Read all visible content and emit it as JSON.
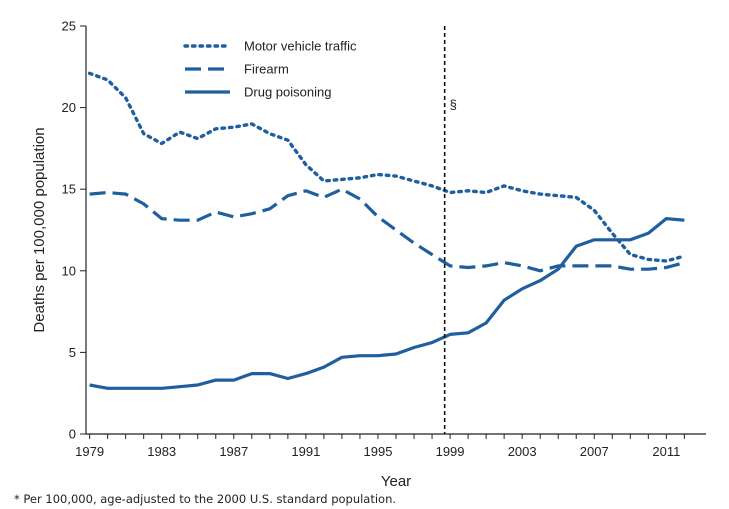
{
  "chart_data": {
    "type": "line",
    "title": "",
    "xlabel": "Year",
    "ylabel": "Deaths per 100,000 population",
    "ylim": [
      0,
      25
    ],
    "yticks": [
      "0",
      "5",
      "10",
      "15",
      "20",
      "25"
    ],
    "xticks": [
      "1979",
      "1983",
      "1987",
      "1991",
      "1995",
      "1999",
      "2003",
      "2007",
      "2011"
    ],
    "xlim": [
      1978.8,
      2013.2
    ],
    "marker_line": {
      "x": 1998.7,
      "label": "§"
    },
    "footnote": "* Per 100,000, age-adjusted to the 2000 U.S. standard population.",
    "legend_position": "top-left",
    "series": [
      {
        "name": "Motor vehicle traffic",
        "style": "dotted",
        "color": "#1f5f9e",
        "x": [
          1979,
          1980,
          1981,
          1982,
          1983,
          1984,
          1985,
          1986,
          1987,
          1988,
          1989,
          1990,
          1991,
          1992,
          1993,
          1994,
          1995,
          1996,
          1997,
          1998,
          1999,
          2000,
          2001,
          2002,
          2003,
          2004,
          2005,
          2006,
          2007,
          2008,
          2009,
          2010,
          2011,
          2012
        ],
        "values": [
          22.1,
          21.7,
          20.6,
          18.4,
          17.8,
          18.5,
          18.1,
          18.7,
          18.8,
          19.0,
          18.4,
          18.0,
          16.5,
          15.5,
          15.6,
          15.7,
          15.9,
          15.8,
          15.5,
          15.2,
          14.8,
          14.9,
          14.8,
          15.2,
          14.9,
          14.7,
          14.6,
          14.5,
          13.7,
          12.3,
          11.0,
          10.7,
          10.6,
          10.9
        ]
      },
      {
        "name": "Firearm",
        "style": "dashed",
        "color": "#1f5f9e",
        "x": [
          1979,
          1980,
          1981,
          1982,
          1983,
          1984,
          1985,
          1986,
          1987,
          1988,
          1989,
          1990,
          1991,
          1992,
          1993,
          1994,
          1995,
          1996,
          1997,
          1998,
          1999,
          2000,
          2001,
          2002,
          2003,
          2004,
          2005,
          2006,
          2007,
          2008,
          2009,
          2010,
          2011,
          2012
        ],
        "values": [
          14.7,
          14.8,
          14.7,
          14.1,
          13.2,
          13.1,
          13.1,
          13.6,
          13.3,
          13.5,
          13.8,
          14.6,
          14.9,
          14.5,
          15.0,
          14.4,
          13.3,
          12.5,
          11.7,
          11.0,
          10.3,
          10.2,
          10.3,
          10.5,
          10.3,
          10.0,
          10.3,
          10.3,
          10.3,
          10.3,
          10.1,
          10.1,
          10.2,
          10.5
        ]
      },
      {
        "name": "Drug poisoning",
        "style": "solid",
        "color": "#1f5f9e",
        "x": [
          1979,
          1980,
          1981,
          1982,
          1983,
          1984,
          1985,
          1986,
          1987,
          1988,
          1989,
          1990,
          1991,
          1992,
          1993,
          1994,
          1995,
          1996,
          1997,
          1998,
          1999,
          2000,
          2001,
          2002,
          2003,
          2004,
          2005,
          2006,
          2007,
          2008,
          2009,
          2010,
          2011,
          2012
        ],
        "values": [
          3.0,
          2.8,
          2.8,
          2.8,
          2.8,
          2.9,
          3.0,
          3.3,
          3.3,
          3.7,
          3.7,
          3.4,
          3.7,
          4.1,
          4.7,
          4.8,
          4.8,
          4.9,
          5.3,
          5.6,
          6.1,
          6.2,
          6.8,
          8.2,
          8.9,
          9.4,
          10.1,
          11.5,
          11.9,
          11.9,
          11.9,
          12.3,
          13.2,
          13.1
        ]
      }
    ]
  }
}
